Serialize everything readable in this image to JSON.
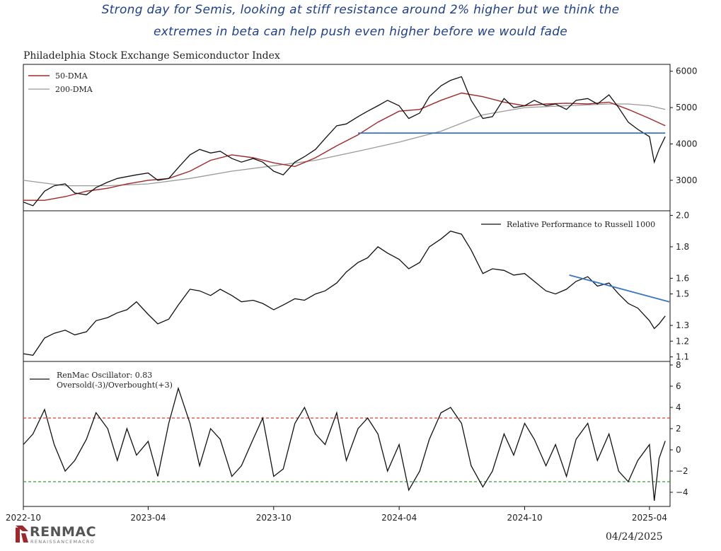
{
  "annotation": {
    "line1": "Strong day for Semis, looking at stiff resistance around 2% higher but we think the",
    "line2": "extremes in beta can help push even higher before we would fade"
  },
  "title": "Philadelphia Stock Exchange Semiconductor Index",
  "date": "04/24/2025",
  "logo": {
    "name": "RENMAC",
    "subtitle": "RENAISSANCEMACRO"
  },
  "colors": {
    "price": "#111111",
    "dma50": "#a0282a",
    "dma200": "#999999",
    "trend": "#3a74c4",
    "overbought": "#e03c31",
    "oversold": "#3a9e3a"
  },
  "chart_data": [
    {
      "type": "line",
      "title": "Philadelphia Stock Exchange Semiconductor Index",
      "x_ticks": [
        "2022-10",
        "2023-04",
        "2023-10",
        "2024-04",
        "2024-10",
        "2025-04"
      ],
      "xlim": [
        "2022-10-01",
        "2025-05-01"
      ],
      "ylim": [
        2200,
        6150
      ],
      "y_ticks": [
        "3000",
        "4000",
        "5000",
        "6000"
      ],
      "y_tick_values": [
        3000,
        4000,
        5000,
        6000
      ],
      "legend": "top-left",
      "series": [
        {
          "name": "Index",
          "x": [
            "2022-10-01",
            "2022-10-15",
            "2022-11-01",
            "2022-11-15",
            "2022-12-01",
            "2022-12-15",
            "2023-01-01",
            "2023-01-15",
            "2023-02-01",
            "2023-02-15",
            "2023-03-01",
            "2023-03-15",
            "2023-04-01",
            "2023-04-15",
            "2023-05-01",
            "2023-05-15",
            "2023-06-01",
            "2023-06-15",
            "2023-07-01",
            "2023-07-15",
            "2023-08-01",
            "2023-08-15",
            "2023-09-01",
            "2023-09-15",
            "2023-10-01",
            "2023-10-15",
            "2023-11-01",
            "2023-11-15",
            "2023-12-01",
            "2023-12-15",
            "2024-01-01",
            "2024-01-15",
            "2024-02-01",
            "2024-02-15",
            "2024-03-01",
            "2024-03-15",
            "2024-04-01",
            "2024-04-15",
            "2024-05-01",
            "2024-05-15",
            "2024-06-01",
            "2024-06-15",
            "2024-07-01",
            "2024-07-15",
            "2024-08-01",
            "2024-08-15",
            "2024-09-01",
            "2024-09-15",
            "2024-10-01",
            "2024-10-15",
            "2024-11-01",
            "2024-11-15",
            "2024-12-01",
            "2024-12-15",
            "2025-01-01",
            "2025-01-15",
            "2025-02-01",
            "2025-02-15",
            "2025-03-01",
            "2025-03-15",
            "2025-04-01",
            "2025-04-08",
            "2025-04-15",
            "2025-04-24"
          ],
          "values": [
            2400,
            2300,
            2700,
            2850,
            2900,
            2650,
            2600,
            2800,
            2950,
            3050,
            3100,
            3150,
            3200,
            3000,
            3050,
            3350,
            3700,
            3850,
            3750,
            3800,
            3600,
            3500,
            3600,
            3500,
            3250,
            3150,
            3500,
            3650,
            3850,
            4150,
            4500,
            4550,
            4750,
            4900,
            5050,
            5200,
            5050,
            4700,
            4850,
            5300,
            5600,
            5750,
            5850,
            5200,
            4700,
            4750,
            5250,
            5000,
            5050,
            5200,
            5050,
            5100,
            4950,
            5200,
            5250,
            5100,
            5350,
            5000,
            4600,
            4400,
            4200,
            3500,
            3850,
            4200
          ]
        },
        {
          "name": "50-DMA",
          "x": [
            "2022-10-01",
            "2022-11-01",
            "2022-12-01",
            "2023-01-01",
            "2023-02-01",
            "2023-03-01",
            "2023-04-01",
            "2023-05-01",
            "2023-06-01",
            "2023-07-01",
            "2023-08-01",
            "2023-09-01",
            "2023-10-01",
            "2023-11-01",
            "2023-12-01",
            "2024-01-01",
            "2024-02-01",
            "2024-03-01",
            "2024-04-01",
            "2024-05-01",
            "2024-06-01",
            "2024-07-01",
            "2024-08-01",
            "2024-09-01",
            "2024-10-01",
            "2024-11-01",
            "2024-12-01",
            "2025-01-01",
            "2025-02-01",
            "2025-03-01",
            "2025-04-01",
            "2025-04-24"
          ],
          "values": [
            2450,
            2450,
            2550,
            2700,
            2780,
            2900,
            3000,
            3050,
            3250,
            3550,
            3700,
            3620,
            3480,
            3380,
            3620,
            3950,
            4250,
            4600,
            4900,
            4950,
            5200,
            5400,
            5300,
            5150,
            5050,
            5100,
            5120,
            5100,
            5150,
            4950,
            4700,
            4500
          ]
        },
        {
          "name": "200-DMA",
          "x": [
            "2022-10-01",
            "2022-12-01",
            "2023-02-01",
            "2023-04-01",
            "2023-06-01",
            "2023-08-01",
            "2023-10-01",
            "2023-12-01",
            "2024-02-01",
            "2024-04-01",
            "2024-06-01",
            "2024-08-01",
            "2024-10-01",
            "2024-12-01",
            "2025-02-01",
            "2025-03-01",
            "2025-04-01",
            "2025-04-24"
          ],
          "values": [
            3000,
            2850,
            2850,
            2900,
            3050,
            3250,
            3400,
            3550,
            3800,
            4050,
            4350,
            4800,
            5000,
            5050,
            5100,
            5100,
            5050,
            4950
          ]
        },
        {
          "name": "Resistance",
          "x": [
            "2024-02-01",
            "2025-04-24"
          ],
          "values": [
            4300,
            4300
          ]
        }
      ]
    },
    {
      "type": "line",
      "title": "Relative Performance to Russell 1000",
      "xlim": [
        "2022-10-01",
        "2025-05-01"
      ],
      "ylim": [
        1.08,
        2.02
      ],
      "y_ticks": [
        "1.1",
        "1.2",
        "1.3",
        "1.5",
        "1.6",
        "1.8",
        "2.0"
      ],
      "y_tick_values": [
        1.1,
        1.2,
        1.3,
        1.5,
        1.6,
        1.8,
        2.0
      ],
      "legend": "top-right",
      "series": [
        {
          "name": "Relative Performance to Russell 1000",
          "x": [
            "2022-10-01",
            "2022-10-15",
            "2022-11-01",
            "2022-11-15",
            "2022-12-01",
            "2022-12-15",
            "2023-01-01",
            "2023-01-15",
            "2023-02-01",
            "2023-02-15",
            "2023-03-01",
            "2023-03-15",
            "2023-04-01",
            "2023-04-15",
            "2023-05-01",
            "2023-05-15",
            "2023-06-01",
            "2023-06-15",
            "2023-07-01",
            "2023-07-15",
            "2023-08-01",
            "2023-08-15",
            "2023-09-01",
            "2023-09-15",
            "2023-10-01",
            "2023-10-15",
            "2023-11-01",
            "2023-11-15",
            "2023-12-01",
            "2023-12-15",
            "2024-01-01",
            "2024-01-15",
            "2024-02-01",
            "2024-02-15",
            "2024-03-01",
            "2024-03-15",
            "2024-04-01",
            "2024-04-15",
            "2024-05-01",
            "2024-05-15",
            "2024-06-01",
            "2024-06-15",
            "2024-07-01",
            "2024-07-15",
            "2024-08-01",
            "2024-08-15",
            "2024-09-01",
            "2024-09-15",
            "2024-10-01",
            "2024-10-15",
            "2024-11-01",
            "2024-11-15",
            "2024-12-01",
            "2024-12-15",
            "2025-01-01",
            "2025-01-15",
            "2025-02-01",
            "2025-02-15",
            "2025-03-01",
            "2025-03-15",
            "2025-04-01",
            "2025-04-08",
            "2025-04-15",
            "2025-04-24"
          ],
          "values": [
            1.12,
            1.11,
            1.22,
            1.25,
            1.27,
            1.24,
            1.26,
            1.33,
            1.35,
            1.38,
            1.4,
            1.45,
            1.37,
            1.31,
            1.34,
            1.43,
            1.53,
            1.52,
            1.49,
            1.53,
            1.49,
            1.45,
            1.46,
            1.44,
            1.4,
            1.43,
            1.47,
            1.46,
            1.5,
            1.52,
            1.57,
            1.64,
            1.7,
            1.73,
            1.8,
            1.76,
            1.72,
            1.66,
            1.7,
            1.8,
            1.85,
            1.9,
            1.88,
            1.78,
            1.63,
            1.66,
            1.65,
            1.62,
            1.63,
            1.58,
            1.52,
            1.5,
            1.53,
            1.58,
            1.61,
            1.55,
            1.57,
            1.5,
            1.44,
            1.41,
            1.33,
            1.28,
            1.31,
            1.36
          ]
        },
        {
          "name": "Trendline",
          "x": [
            "2024-12-05",
            "2025-04-30"
          ],
          "values": [
            1.62,
            1.45
          ]
        }
      ]
    },
    {
      "type": "line",
      "xlim": [
        "2022-10-01",
        "2025-05-01"
      ],
      "ylim": [
        -5.2,
        8.2
      ],
      "y_ticks": [
        "−4",
        "−2",
        "0",
        "2",
        "4",
        "6",
        "8"
      ],
      "y_tick_values": [
        -4,
        -2,
        0,
        2,
        4,
        6,
        8
      ],
      "legend": "top-left",
      "legend_label": "RenMac Oscillator: 0.83",
      "legend_label2": "Oversold(-3)/Overbought(+3)",
      "thresholds": {
        "overbought": 3,
        "oversold": -3
      },
      "series": [
        {
          "name": "RenMac Oscillator",
          "x": [
            "2022-10-01",
            "2022-10-15",
            "2022-11-01",
            "2022-11-15",
            "2022-12-01",
            "2022-12-15",
            "2023-01-01",
            "2023-01-15",
            "2023-02-01",
            "2023-02-15",
            "2023-03-01",
            "2023-03-15",
            "2023-04-01",
            "2023-04-15",
            "2023-05-01",
            "2023-05-15",
            "2023-06-01",
            "2023-06-15",
            "2023-07-01",
            "2023-07-15",
            "2023-08-01",
            "2023-08-15",
            "2023-09-01",
            "2023-09-15",
            "2023-10-01",
            "2023-10-15",
            "2023-11-01",
            "2023-11-15",
            "2023-12-01",
            "2023-12-15",
            "2024-01-01",
            "2024-01-15",
            "2024-02-01",
            "2024-02-15",
            "2024-03-01",
            "2024-03-15",
            "2024-04-01",
            "2024-04-15",
            "2024-05-01",
            "2024-05-15",
            "2024-06-01",
            "2024-06-15",
            "2024-07-01",
            "2024-07-15",
            "2024-08-01",
            "2024-08-15",
            "2024-09-01",
            "2024-09-15",
            "2024-10-01",
            "2024-10-15",
            "2024-11-01",
            "2024-11-15",
            "2024-12-01",
            "2024-12-15",
            "2025-01-01",
            "2025-01-15",
            "2025-02-01",
            "2025-02-15",
            "2025-03-01",
            "2025-03-15",
            "2025-04-01",
            "2025-04-08",
            "2025-04-15",
            "2025-04-24"
          ],
          "values": [
            0.5,
            1.5,
            3.8,
            0.5,
            -2.0,
            -1.0,
            1.0,
            3.5,
            2.0,
            -1.0,
            2.0,
            -0.5,
            0.8,
            -2.5,
            2.5,
            5.8,
            2.5,
            -1.5,
            2.0,
            1.0,
            -2.5,
            -1.5,
            1.0,
            3.0,
            -2.5,
            -1.8,
            2.5,
            4.0,
            1.5,
            0.5,
            3.5,
            -1.0,
            2.0,
            3.0,
            1.5,
            -2.0,
            0.5,
            -3.8,
            -2.0,
            1.0,
            3.5,
            4.0,
            2.5,
            -1.5,
            -3.5,
            -2.0,
            1.5,
            -0.5,
            2.5,
            1.0,
            -1.5,
            0.5,
            -2.5,
            1.0,
            2.5,
            -1.0,
            1.5,
            -2.0,
            -3.0,
            -1.0,
            0.5,
            -4.8,
            -0.8,
            0.83
          ]
        }
      ]
    }
  ]
}
